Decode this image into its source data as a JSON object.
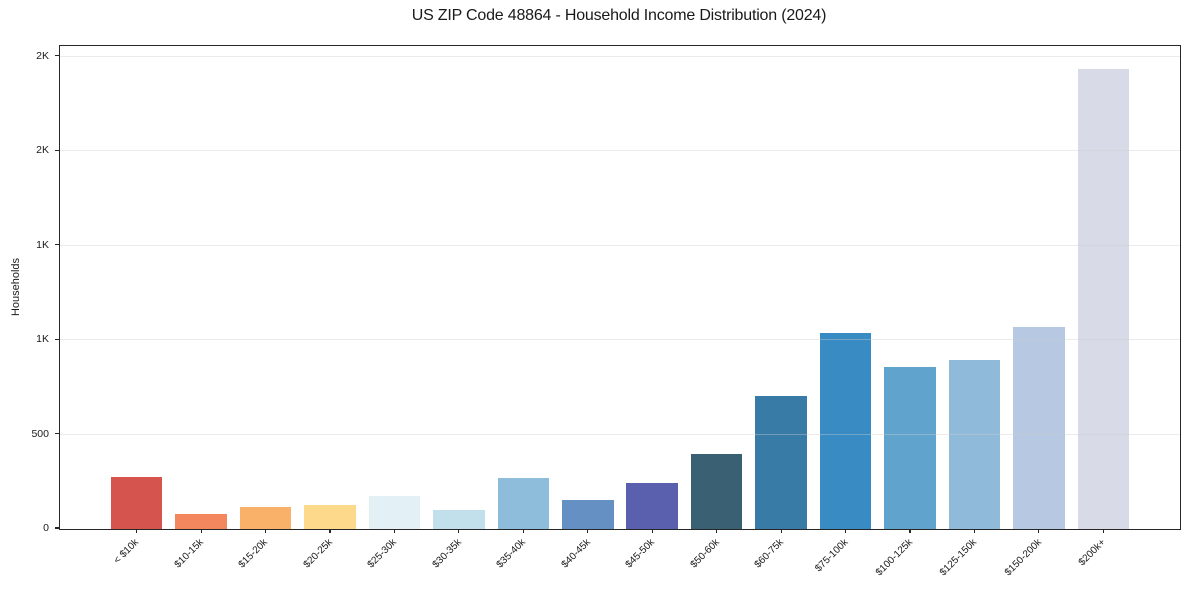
{
  "chart": {
    "title": "US ZIP Code 48864 - Household Income Distribution (2024)",
    "ylabel": "Households"
  },
  "chart_data": {
    "type": "bar",
    "title": "US ZIP Code 48864 - Household Income Distribution (2024)",
    "xlabel": "",
    "ylabel": "Households",
    "categories": [
      "< $10k",
      "$10-15k",
      "$15-20k",
      "$20-25k",
      "$25-30k",
      "$30-35k",
      "$35-40k",
      "$40-45k",
      "$45-50k",
      "$50-60k",
      "$60-75k",
      "$75-100k",
      "$100-125k",
      "$125-150k",
      "$150-200k",
      "$200k+"
    ],
    "values": [
      275,
      80,
      118,
      127,
      174,
      100,
      272,
      155,
      246,
      396,
      706,
      1038,
      858,
      893,
      1069,
      2435
    ],
    "bar_colors": [
      "#d6544e",
      "#f5875f",
      "#f9b068",
      "#fdd98b",
      "#e3f1f7",
      "#c2dfec",
      "#8dbdda",
      "#6590c3",
      "#5a5fae",
      "#3a6073",
      "#377ba6",
      "#398cc3",
      "#60a4ce",
      "#90bada",
      "#b7c8e2",
      "#d8dae7"
    ],
    "ylim": [
      0,
      2557
    ],
    "yticks": [
      {
        "value": 0,
        "label": "0"
      },
      {
        "value": 500,
        "label": "500"
      },
      {
        "value": 1000,
        "label": "1K"
      },
      {
        "value": 1500,
        "label": "1K"
      },
      {
        "value": 2000,
        "label": "2K"
      },
      {
        "value": 2500,
        "label": "2K"
      }
    ],
    "grid": "horizontal",
    "legend": "none",
    "spine_color": "#262626",
    "grid_color": "#cccccc"
  }
}
